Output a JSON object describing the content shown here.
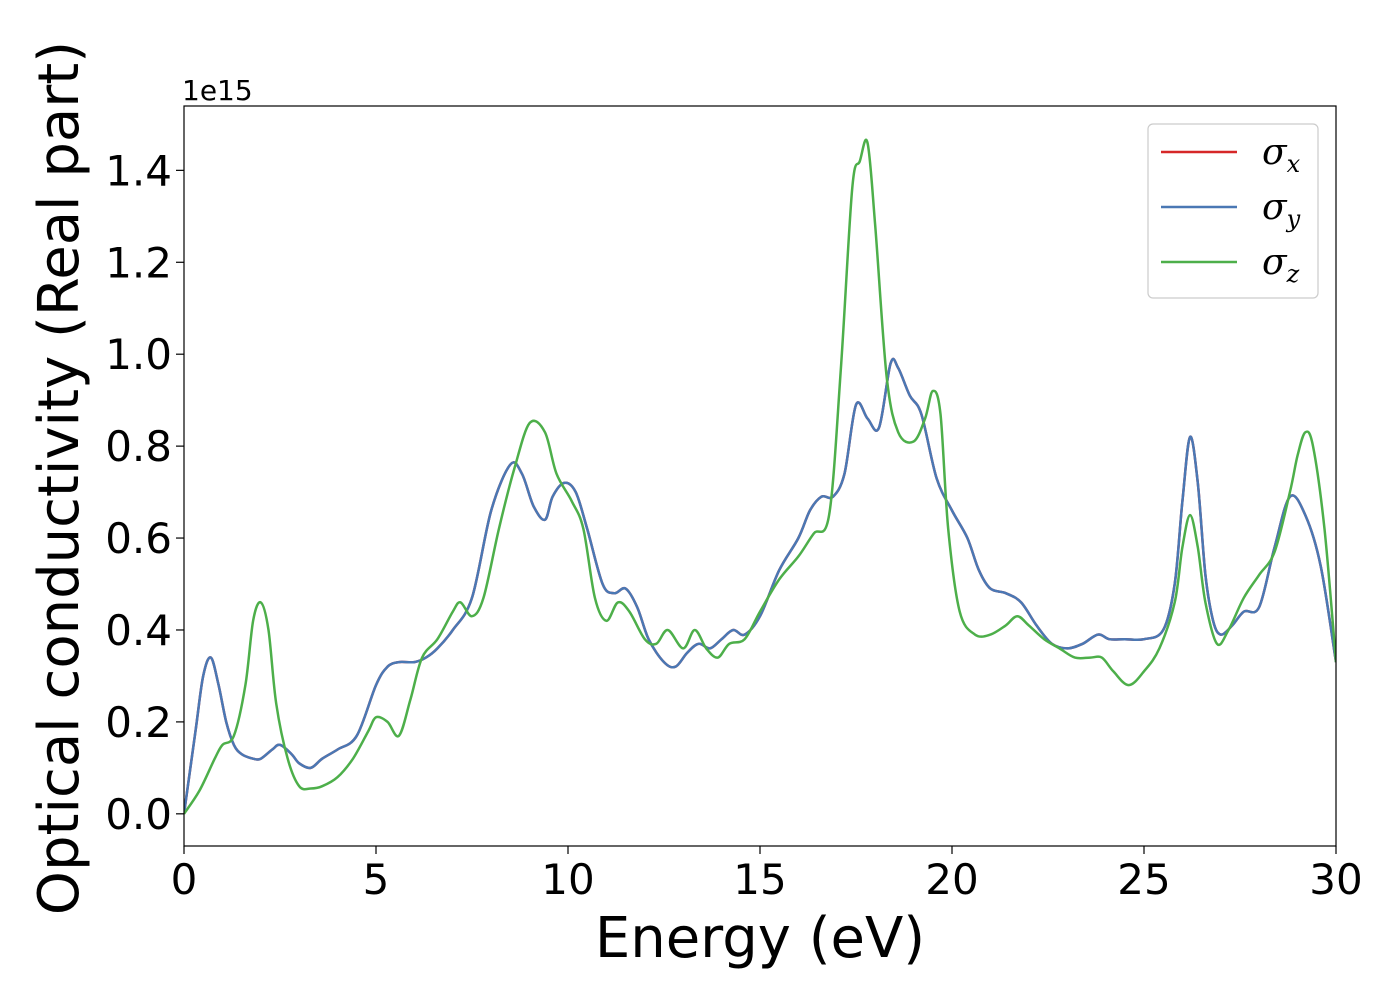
{
  "chart_data": {
    "type": "line",
    "xlabel": "Energy (eV)",
    "ylabel": "Optical conductivity (Real part)",
    "y_offset_label": "1e15",
    "xlim": [
      0,
      30
    ],
    "ylim": [
      -0.07,
      1.54
    ],
    "xticks": [
      0,
      5,
      10,
      15,
      20,
      25,
      30
    ],
    "xtick_labels": [
      "0",
      "5",
      "10",
      "15",
      "20",
      "25",
      "30"
    ],
    "yticks": [
      0.0,
      0.2,
      0.4,
      0.6,
      0.8,
      1.0,
      1.2,
      1.4
    ],
    "ytick_labels": [
      "0.0",
      "0.2",
      "0.4",
      "0.6",
      "0.8",
      "1.0",
      "1.2",
      "1.4"
    ],
    "grid": false,
    "legend_position": "top-right",
    "series": [
      {
        "name": "σ",
        "subscript": "x",
        "color": "#d62728",
        "x": [
          0,
          0.3,
          0.5,
          0.7,
          0.9,
          1.1,
          1.3,
          1.5,
          1.8,
          2.0,
          2.3,
          2.5,
          2.8,
          3.0,
          3.3,
          3.6,
          4.0,
          4.5,
          5.0,
          5.3,
          5.6,
          6.0,
          6.3,
          6.6,
          7.0,
          7.5,
          8.0,
          8.5,
          8.8,
          9.1,
          9.4,
          9.6,
          9.9,
          10.2,
          10.5,
          10.9,
          11.2,
          11.5,
          11.8,
          12.1,
          12.5,
          12.8,
          13.1,
          13.4,
          13.7,
          14.0,
          14.3,
          14.6,
          15.0,
          15.5,
          16.0,
          16.3,
          16.6,
          16.9,
          17.2,
          17.5,
          17.8,
          18.1,
          18.4,
          18.6,
          18.9,
          19.2,
          19.6,
          20.0,
          20.4,
          20.7,
          21.0,
          21.4,
          21.8,
          22.2,
          22.6,
          23.0,
          23.4,
          23.8,
          24.1,
          24.5,
          25.0,
          25.5,
          25.8,
          26.0,
          26.2,
          26.4,
          26.6,
          26.8,
          27.0,
          27.3,
          27.6,
          28.0,
          28.4,
          28.8,
          29.2,
          29.6,
          30.0
        ],
        "y": [
          0,
          0.18,
          0.3,
          0.34,
          0.28,
          0.2,
          0.15,
          0.13,
          0.12,
          0.12,
          0.14,
          0.15,
          0.13,
          0.11,
          0.1,
          0.12,
          0.14,
          0.17,
          0.28,
          0.32,
          0.33,
          0.33,
          0.34,
          0.36,
          0.4,
          0.47,
          0.66,
          0.76,
          0.74,
          0.67,
          0.64,
          0.69,
          0.72,
          0.7,
          0.62,
          0.5,
          0.48,
          0.49,
          0.45,
          0.38,
          0.33,
          0.32,
          0.35,
          0.37,
          0.36,
          0.38,
          0.4,
          0.39,
          0.43,
          0.53,
          0.6,
          0.66,
          0.69,
          0.69,
          0.74,
          0.89,
          0.86,
          0.84,
          0.98,
          0.97,
          0.91,
          0.87,
          0.73,
          0.66,
          0.6,
          0.53,
          0.49,
          0.48,
          0.46,
          0.41,
          0.37,
          0.36,
          0.37,
          0.39,
          0.38,
          0.38,
          0.38,
          0.4,
          0.5,
          0.68,
          0.82,
          0.72,
          0.52,
          0.42,
          0.39,
          0.41,
          0.44,
          0.45,
          0.58,
          0.69,
          0.65,
          0.54,
          0.33
        ]
      },
      {
        "name": "σ",
        "subscript": "y",
        "color": "#4a78b4",
        "x": [
          0,
          0.3,
          0.5,
          0.7,
          0.9,
          1.1,
          1.3,
          1.5,
          1.8,
          2.0,
          2.3,
          2.5,
          2.8,
          3.0,
          3.3,
          3.6,
          4.0,
          4.5,
          5.0,
          5.3,
          5.6,
          6.0,
          6.3,
          6.6,
          7.0,
          7.5,
          8.0,
          8.5,
          8.8,
          9.1,
          9.4,
          9.6,
          9.9,
          10.2,
          10.5,
          10.9,
          11.2,
          11.5,
          11.8,
          12.1,
          12.5,
          12.8,
          13.1,
          13.4,
          13.7,
          14.0,
          14.3,
          14.6,
          15.0,
          15.5,
          16.0,
          16.3,
          16.6,
          16.9,
          17.2,
          17.5,
          17.8,
          18.1,
          18.4,
          18.6,
          18.9,
          19.2,
          19.6,
          20.0,
          20.4,
          20.7,
          21.0,
          21.4,
          21.8,
          22.2,
          22.6,
          23.0,
          23.4,
          23.8,
          24.1,
          24.5,
          25.0,
          25.5,
          25.8,
          26.0,
          26.2,
          26.4,
          26.6,
          26.8,
          27.0,
          27.3,
          27.6,
          28.0,
          28.4,
          28.8,
          29.2,
          29.6,
          30.0
        ],
        "y": [
          0,
          0.18,
          0.3,
          0.34,
          0.28,
          0.2,
          0.15,
          0.13,
          0.12,
          0.12,
          0.14,
          0.15,
          0.13,
          0.11,
          0.1,
          0.12,
          0.14,
          0.17,
          0.28,
          0.32,
          0.33,
          0.33,
          0.34,
          0.36,
          0.4,
          0.47,
          0.66,
          0.76,
          0.74,
          0.67,
          0.64,
          0.69,
          0.72,
          0.7,
          0.62,
          0.5,
          0.48,
          0.49,
          0.45,
          0.38,
          0.33,
          0.32,
          0.35,
          0.37,
          0.36,
          0.38,
          0.4,
          0.39,
          0.43,
          0.53,
          0.6,
          0.66,
          0.69,
          0.69,
          0.74,
          0.89,
          0.86,
          0.84,
          0.98,
          0.97,
          0.91,
          0.87,
          0.73,
          0.66,
          0.6,
          0.53,
          0.49,
          0.48,
          0.46,
          0.41,
          0.37,
          0.36,
          0.37,
          0.39,
          0.38,
          0.38,
          0.38,
          0.4,
          0.5,
          0.68,
          0.82,
          0.72,
          0.52,
          0.42,
          0.39,
          0.41,
          0.44,
          0.45,
          0.58,
          0.69,
          0.65,
          0.54,
          0.33
        ]
      },
      {
        "name": "σ",
        "subscript": "z",
        "color": "#4daf4a",
        "x": [
          0,
          0.4,
          0.8,
          1.0,
          1.3,
          1.6,
          1.8,
          2.0,
          2.2,
          2.4,
          2.7,
          3.0,
          3.3,
          3.6,
          4.0,
          4.4,
          4.8,
          5.0,
          5.3,
          5.6,
          5.9,
          6.2,
          6.6,
          7.0,
          7.2,
          7.5,
          7.8,
          8.2,
          8.6,
          9.0,
          9.4,
          9.7,
          10.1,
          10.4,
          10.7,
          11.0,
          11.3,
          11.6,
          12.0,
          12.3,
          12.6,
          13.0,
          13.3,
          13.6,
          13.9,
          14.2,
          14.6,
          15.0,
          15.5,
          16.0,
          16.4,
          16.8,
          17.1,
          17.4,
          17.6,
          17.8,
          18.0,
          18.3,
          18.6,
          19.0,
          19.3,
          19.5,
          19.7,
          19.9,
          20.2,
          20.6,
          21.0,
          21.4,
          21.7,
          22.0,
          22.4,
          22.8,
          23.2,
          23.6,
          23.9,
          24.2,
          24.6,
          25.0,
          25.4,
          25.8,
          26.0,
          26.2,
          26.4,
          26.6,
          26.9,
          27.2,
          27.6,
          28.0,
          28.4,
          28.8,
          29.0,
          29.2,
          29.4,
          29.7,
          30.0
        ],
        "y": [
          0,
          0.05,
          0.12,
          0.15,
          0.17,
          0.28,
          0.42,
          0.46,
          0.4,
          0.24,
          0.12,
          0.06,
          0.055,
          0.06,
          0.08,
          0.12,
          0.18,
          0.21,
          0.2,
          0.17,
          0.25,
          0.34,
          0.38,
          0.44,
          0.46,
          0.43,
          0.47,
          0.62,
          0.75,
          0.85,
          0.83,
          0.74,
          0.68,
          0.62,
          0.47,
          0.42,
          0.46,
          0.44,
          0.38,
          0.37,
          0.4,
          0.36,
          0.4,
          0.36,
          0.34,
          0.37,
          0.38,
          0.44,
          0.51,
          0.56,
          0.61,
          0.65,
          0.96,
          1.36,
          1.42,
          1.46,
          1.28,
          0.95,
          0.83,
          0.81,
          0.86,
          0.92,
          0.87,
          0.62,
          0.44,
          0.39,
          0.39,
          0.41,
          0.43,
          0.41,
          0.38,
          0.36,
          0.34,
          0.34,
          0.34,
          0.31,
          0.28,
          0.31,
          0.36,
          0.46,
          0.58,
          0.65,
          0.58,
          0.46,
          0.37,
          0.4,
          0.47,
          0.52,
          0.57,
          0.7,
          0.78,
          0.83,
          0.8,
          0.62,
          0.33
        ]
      }
    ]
  }
}
